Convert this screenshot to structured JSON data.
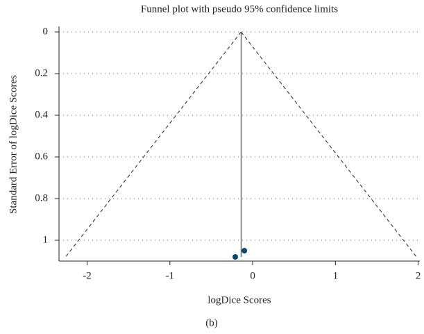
{
  "chart_data": {
    "type": "scatter",
    "title": "Funnel plot with pseudo 95% confidence limits",
    "x_label": "logDice Scores",
    "y_label": "Standard Error of logDice Scores",
    "caption": "(b)",
    "x": [
      -0.21,
      -0.1
    ],
    "y": [
      1.08,
      1.05
    ],
    "color": "#0b4a6b",
    "pooled_line": {
      "x": [
        -0.14,
        -0.14
      ],
      "y": [
        0,
        1.08
      ]
    },
    "funnel_limits": [
      {
        "x": [
          -0.14,
          -2.26
        ],
        "y": [
          0,
          1.08
        ]
      },
      {
        "x": [
          -0.14,
          1.98
        ],
        "y": [
          0,
          1.08
        ]
      }
    ],
    "xlim": [
      -2.34,
      2.02
    ],
    "ylim": [
      1.1,
      0
    ],
    "xticks": [
      -2,
      -1,
      0,
      1,
      2
    ],
    "yticks": [
      0,
      0.2,
      0.4,
      0.6,
      0.8,
      1
    ],
    "grid": true
  }
}
